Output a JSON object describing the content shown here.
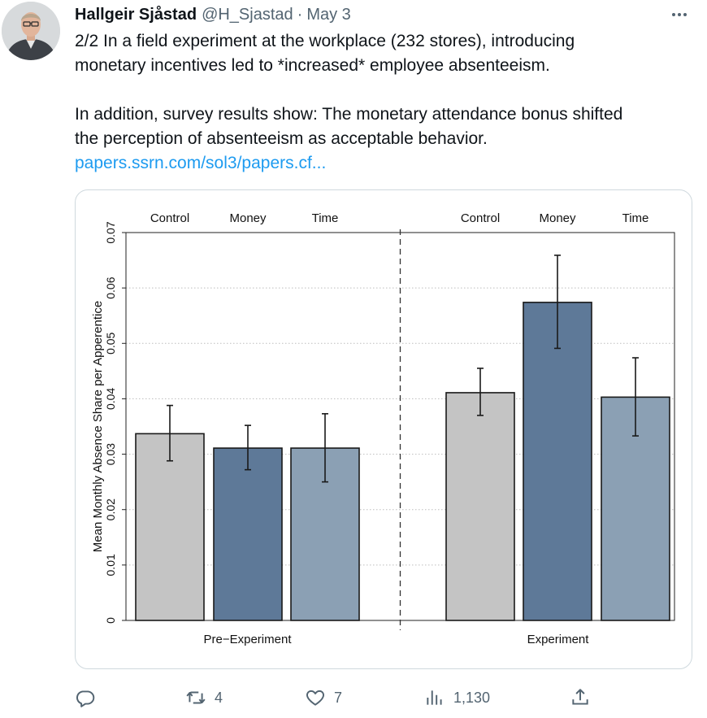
{
  "tweet": {
    "author_name": "Hallgeir Sjåstad",
    "handle": "@H_Sjastad",
    "separator": "·",
    "date": "May 3",
    "text_lines": [
      "2/2 In a field experiment at the workplace (232 stores), introducing",
      "monetary incentives led to *increased* employee absenteeism.",
      "In addition, survey results show: The monetary attendance bonus shifted",
      "the perception of absenteeism as acceptable behavior."
    ],
    "link_text": "papers.ssrn.com/sol3/papers.cf..."
  },
  "actions": {
    "reply_count": "",
    "retweet_count": "4",
    "like_count": "7",
    "views_count": "1,130"
  },
  "chart_data": {
    "type": "bar",
    "ylabel": "Mean Monthly Absence Share per Apperentice",
    "ylim": [
      0,
      0.07
    ],
    "yticks": [
      "0",
      "0.01",
      "0.02",
      "0.03",
      "0.04",
      "0.05",
      "0.06",
      "0.07"
    ],
    "grid": true,
    "panels": [
      {
        "name": "Pre−Experiment",
        "categories": [
          "Control",
          "Money",
          "Time"
        ],
        "values": [
          0.0337,
          0.0311,
          0.0311
        ],
        "ci_low": [
          0.0288,
          0.0272,
          0.025
        ],
        "ci_high": [
          0.0388,
          0.0352,
          0.0373
        ]
      },
      {
        "name": "Experiment",
        "categories": [
          "Control",
          "Money",
          "Time"
        ],
        "values": [
          0.0411,
          0.0574,
          0.0403
        ],
        "ci_low": [
          0.037,
          0.0491,
          0.0333
        ],
        "ci_high": [
          0.0455,
          0.0659,
          0.0474
        ]
      }
    ],
    "colors": {
      "Control": "#c4c4c4",
      "Money": "#5e7998",
      "Time": "#8ba0b4"
    }
  }
}
